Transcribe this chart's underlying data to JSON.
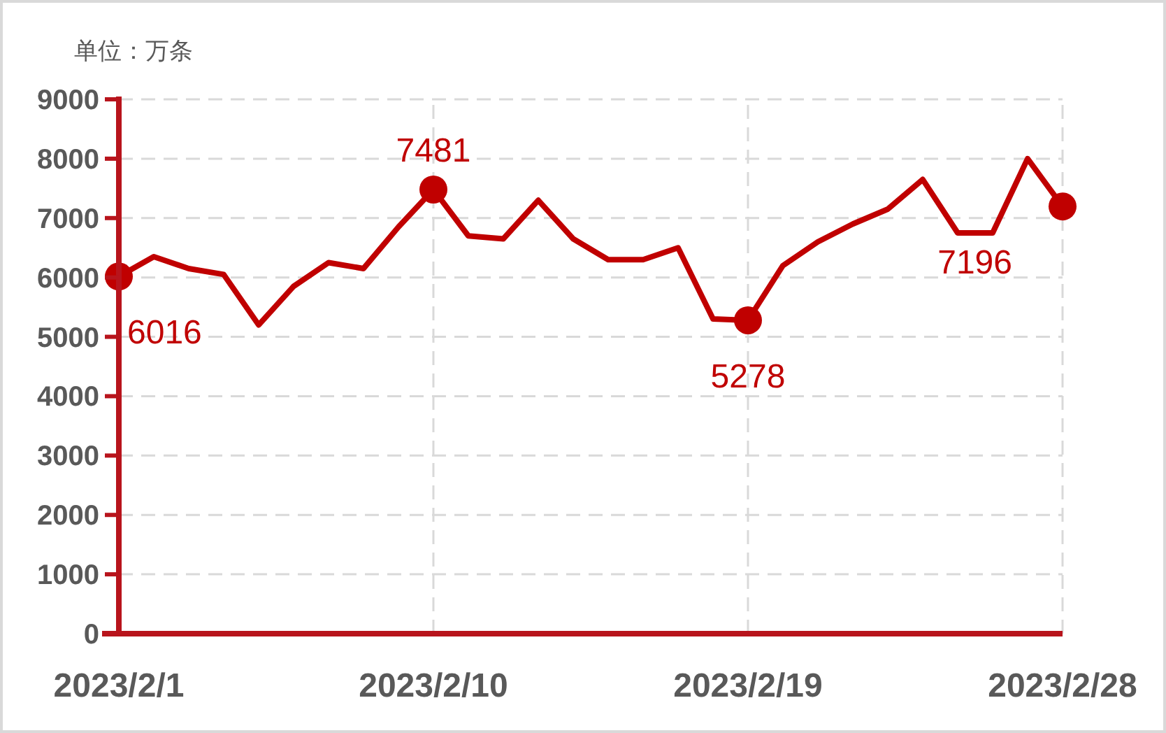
{
  "chart_data": {
    "type": "line",
    "ylabel": "单位：万条",
    "x": [
      "2023-02-01",
      "2023-02-02",
      "2023-02-03",
      "2023-02-04",
      "2023-02-05",
      "2023-02-06",
      "2023-02-07",
      "2023-02-08",
      "2023-02-09",
      "2023-02-10",
      "2023-02-11",
      "2023-02-12",
      "2023-02-13",
      "2023-02-14",
      "2023-02-15",
      "2023-02-16",
      "2023-02-17",
      "2023-02-18",
      "2023-02-19",
      "2023-02-20",
      "2023-02-21",
      "2023-02-22",
      "2023-02-23",
      "2023-02-24",
      "2023-02-25",
      "2023-02-26",
      "2023-02-27",
      "2023-02-28"
    ],
    "series": [
      {
        "color": "#c00000",
        "values": [
          6016,
          6350,
          6150,
          6050,
          5200,
          5850,
          6250,
          6150,
          6850,
          7481,
          6700,
          6650,
          7300,
          6650,
          6300,
          6300,
          6500,
          5300,
          5278,
          6200,
          6600,
          6900,
          7150,
          7650,
          6750,
          6750,
          8000,
          7196
        ]
      },
      {
        "type": "scatter",
        "color": "#c00000",
        "marker": "circle",
        "x": [
          "2023-02-01",
          "2023-02-10",
          "2023-02-19",
          "2023-02-28"
        ],
        "values": [
          6016,
          7481,
          5278,
          7196
        ],
        "value_labels": [
          "6016",
          "7481",
          "5278",
          "7196"
        ]
      }
    ],
    "xlim": [
      "2023-02-01",
      "2023-02-28"
    ],
    "xticks": [
      {
        "value": "2023-02-01",
        "label": "2023/2/1"
      },
      {
        "value": "2023-02-10",
        "label": "2023/2/10"
      },
      {
        "value": "2023-02-19",
        "label": "2023/2/19"
      },
      {
        "value": "2023-02-28",
        "label": "2023/2/28"
      }
    ],
    "ylim": [
      0,
      9000
    ],
    "yticks": [
      0,
      1000,
      2000,
      3000,
      4000,
      5000,
      6000,
      7000,
      8000,
      9000
    ],
    "grid": true,
    "line_style": "solid"
  }
}
